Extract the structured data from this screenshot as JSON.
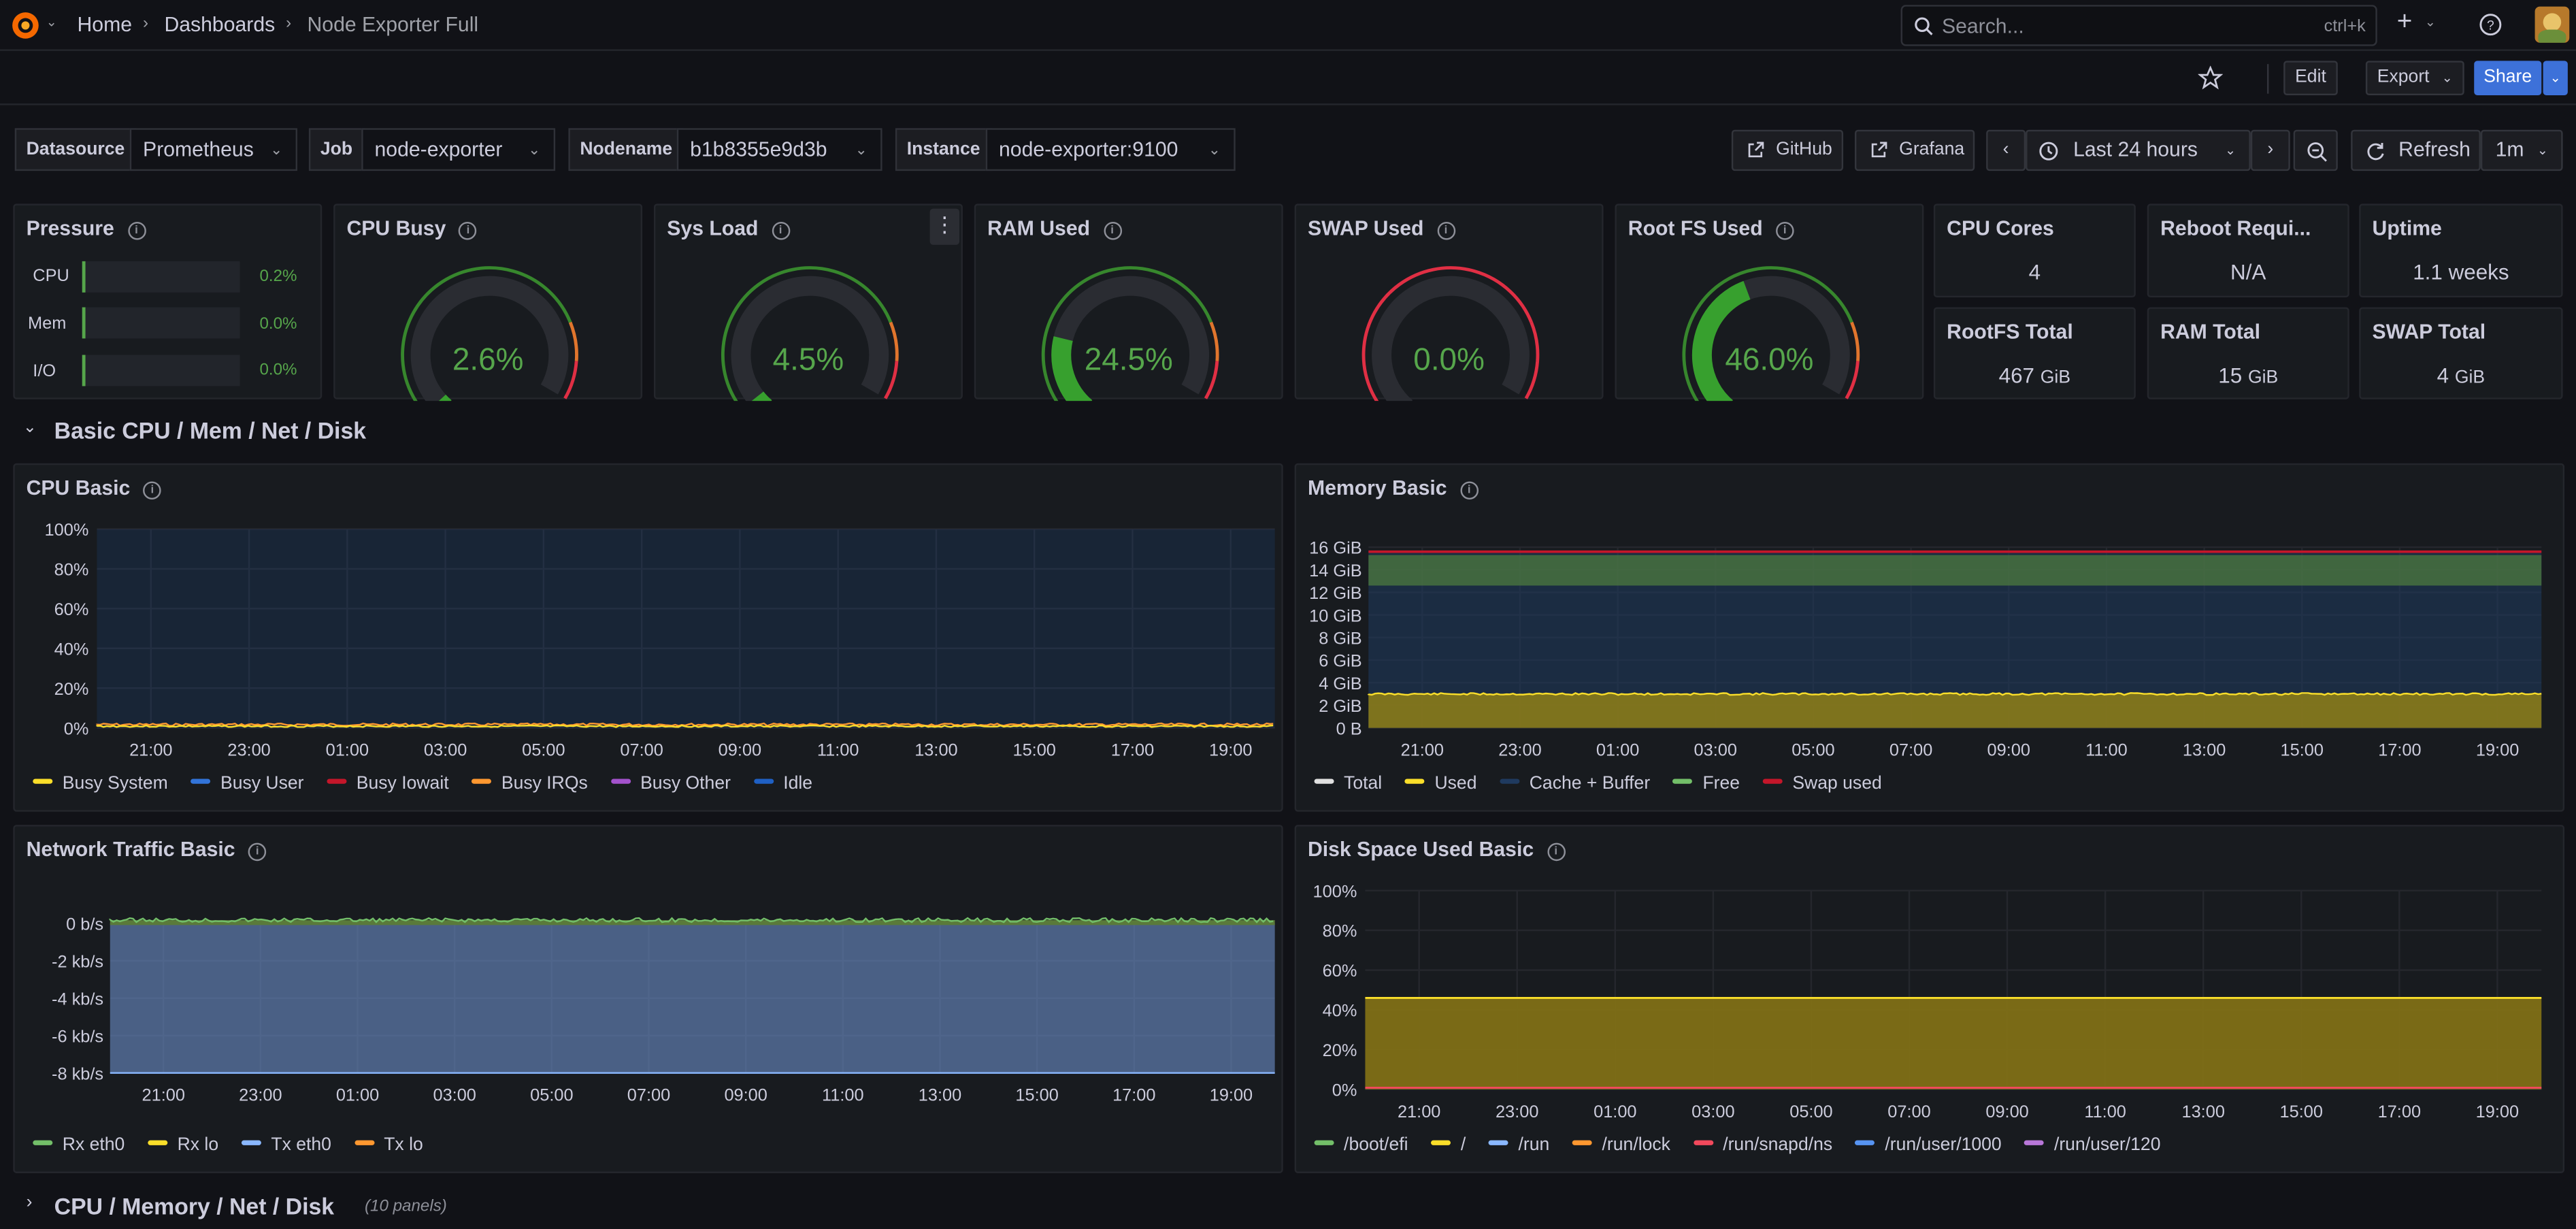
{
  "breadcrumb": {
    "home": "Home",
    "dashboards": "Dashboards",
    "current": "Node Exporter Full"
  },
  "search": {
    "placeholder": "Search...",
    "shortcut": "ctrl+k"
  },
  "toolbar": {
    "edit": "Edit",
    "export": "Export",
    "share": "Share"
  },
  "variables": [
    {
      "label": "Datasource",
      "value": "Prometheus"
    },
    {
      "label": "Job",
      "value": "node-exporter"
    },
    {
      "label": "Nodename",
      "value": "b1b8355e9d3b"
    },
    {
      "label": "Instance",
      "value": "node-exporter:9100"
    }
  ],
  "links": {
    "github": "GitHub",
    "grafana": "Grafana"
  },
  "time": {
    "range": "Last 24 hours",
    "refresh": "Refresh",
    "interval": "1m"
  },
  "pressure": {
    "title": "Pressure",
    "rows": [
      {
        "label": "CPU",
        "value": "0.2%"
      },
      {
        "label": "Mem",
        "value": "0.0%"
      },
      {
        "label": "I/O",
        "value": "0.0%"
      }
    ]
  },
  "gauges": [
    {
      "title": "CPU Busy",
      "value": "2.6%",
      "fraction": 0.026
    },
    {
      "title": "Sys Load",
      "value": "4.5%",
      "fraction": 0.045
    },
    {
      "title": "RAM Used",
      "value": "24.5%",
      "fraction": 0.245
    },
    {
      "title": "SWAP Used",
      "value": "0.0%",
      "fraction": 0.0
    },
    {
      "title": "Root FS Used",
      "value": "46.0%",
      "fraction": 0.46
    }
  ],
  "stats": [
    {
      "title": "CPU Cores",
      "value": "4",
      "unit": ""
    },
    {
      "title": "Reboot Requi...",
      "value": "N/A",
      "unit": ""
    },
    {
      "title": "Uptime",
      "value": "1.1 weeks",
      "unit": ""
    },
    {
      "title": "RootFS Total",
      "value": "467",
      "unit": "GiB"
    },
    {
      "title": "RAM Total",
      "value": "15",
      "unit": "GiB"
    },
    {
      "title": "SWAP Total",
      "value": "4",
      "unit": "GiB"
    }
  ],
  "rows": {
    "basic": "Basic CPU / Mem / Net / Disk",
    "cpu_mem": "CPU / Memory / Net / Disk",
    "cpu_mem_count": "(10 panels)"
  },
  "x_ticks": [
    "21:00",
    "23:00",
    "01:00",
    "03:00",
    "05:00",
    "07:00",
    "09:00",
    "11:00",
    "13:00",
    "15:00",
    "17:00",
    "19:00"
  ],
  "panels": {
    "cpu": {
      "title": "CPU Basic",
      "yticks": [
        "100%",
        "80%",
        "60%",
        "40%",
        "20%",
        "0%"
      ],
      "legend": [
        {
          "name": "Busy System",
          "color": "#fade2a"
        },
        {
          "name": "Busy User",
          "color": "#3274d9"
        },
        {
          "name": "Busy Iowait",
          "color": "#c4162a"
        },
        {
          "name": "Busy IRQs",
          "color": "#ff9830"
        },
        {
          "name": "Busy Other",
          "color": "#a352cc"
        },
        {
          "name": "Idle",
          "color": "#1f60c4"
        }
      ]
    },
    "mem": {
      "title": "Memory Basic",
      "yticks": [
        "16 GiB",
        "14 GiB",
        "12 GiB",
        "10 GiB",
        "8 GiB",
        "6 GiB",
        "4 GiB",
        "2 GiB",
        "0 B"
      ],
      "legend": [
        {
          "name": "Total",
          "color": "#e0e0e0"
        },
        {
          "name": "Used",
          "color": "#fade2a"
        },
        {
          "name": "Cache + Buffer",
          "color": "#1f3a5f"
        },
        {
          "name": "Free",
          "color": "#73bf69"
        },
        {
          "name": "Swap used",
          "color": "#c4162a"
        }
      ]
    },
    "net": {
      "title": "Network Traffic Basic",
      "yticks": [
        "0 b/s",
        "-2 kb/s",
        "-4 kb/s",
        "-6 kb/s",
        "-8 kb/s"
      ],
      "legend": [
        {
          "name": "Rx eth0",
          "color": "#73bf69"
        },
        {
          "name": "Rx lo",
          "color": "#fade2a"
        },
        {
          "name": "Tx eth0",
          "color": "#8ab8ff"
        },
        {
          "name": "Tx lo",
          "color": "#ff9830"
        }
      ]
    },
    "disk": {
      "title": "Disk Space Used Basic",
      "yticks": [
        "100%",
        "80%",
        "60%",
        "40%",
        "20%",
        "0%"
      ],
      "legend": [
        {
          "name": "/boot/efi",
          "color": "#73bf69"
        },
        {
          "name": "/",
          "color": "#fade2a"
        },
        {
          "name": "/run",
          "color": "#8ab8ff"
        },
        {
          "name": "/run/lock",
          "color": "#ff9830"
        },
        {
          "name": "/run/snapd/ns",
          "color": "#f2495c"
        },
        {
          "name": "/run/user/1000",
          "color": "#5794f2"
        },
        {
          "name": "/run/user/120",
          "color": "#b877d9"
        }
      ]
    }
  }
}
